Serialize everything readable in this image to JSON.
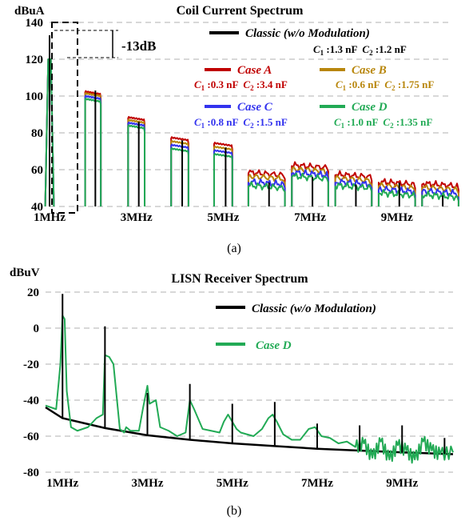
{
  "colors": {
    "classic": "#000000",
    "case_a": "#c00000",
    "case_b": "#b8860b",
    "case_c": "#3333ee",
    "case_d": "#22aa55",
    "grid": "#b0b0b0"
  },
  "chart_data": [
    {
      "type": "line",
      "title": "Coil Current Spectrum",
      "ylabel": "dBuA",
      "xlabel": "",
      "caption": "(a)",
      "x_unit": "MHz",
      "xlim": [
        1,
        10.2
      ],
      "ylim": [
        40,
        140
      ],
      "x_ticks": [
        1,
        3,
        5,
        7,
        9
      ],
      "x_tick_labels": [
        "1MHz",
        "3MHz",
        "5MHz",
        "7MHz",
        "9MHz"
      ],
      "y_ticks": [
        40,
        60,
        80,
        100,
        120,
        140
      ],
      "y_tick_labels": [
        "40",
        "60",
        "80",
        "100",
        "120",
        "140"
      ],
      "grid": "horizontal-dashed",
      "annotation": {
        "text": "-13dB",
        "from_y": 133,
        "to_y": 120,
        "at_x": 1
      },
      "legend": [
        {
          "name": "Classic (w/o Modulation)",
          "params": [
            {
              "sym": "C",
              "sub": "1",
              "val": " :1.3 nF"
            },
            {
              "sym": "C",
              "sub": "2",
              "val": " :1.2 nF"
            }
          ]
        },
        {
          "name": "Case A",
          "params": [
            {
              "sym": "C",
              "sub": "1",
              "val": " :0.3 nF"
            },
            {
              "sym": "C",
              "sub": "2",
              "val": " :3.4 nF"
            }
          ]
        },
        {
          "name": "Case B",
          "params": [
            {
              "sym": "C",
              "sub": "1",
              "val": " :0.6 nF"
            },
            {
              "sym": "C",
              "sub": "2",
              "val": " :1.75 nF"
            }
          ]
        },
        {
          "name": "Case C",
          "params": [
            {
              "sym": "C",
              "sub": "1",
              "val": " :0.8 nF"
            },
            {
              "sym": "C",
              "sub": "2",
              "val": " :1.5 nF"
            }
          ]
        },
        {
          "name": "Case D",
          "params": [
            {
              "sym": "C",
              "sub": "1",
              "val": " :1.0 nF"
            },
            {
              "sym": "C",
              "sub": "2",
              "val": " :1.35 nF"
            }
          ]
        }
      ],
      "classic_harmonics": {
        "x": [
          1,
          2,
          3,
          4,
          5,
          6,
          7,
          8,
          9,
          10
        ],
        "y": [
          133,
          103,
          86,
          76,
          72,
          53,
          56,
          52,
          53,
          46
        ]
      },
      "case_peaks": {
        "x": [
          1,
          2,
          3,
          4,
          5,
          6,
          7,
          8,
          9,
          10
        ],
        "case_a": [
          120,
          101,
          87,
          76,
          73,
          57,
          61,
          56,
          52,
          51
        ],
        "case_b": [
          120,
          100,
          85.5,
          74,
          71,
          55,
          59,
          54,
          50,
          49
        ],
        "case_c": [
          120,
          98.5,
          84,
          72,
          69,
          52,
          57,
          52,
          48,
          47
        ],
        "case_d": [
          120,
          97,
          82.5,
          70,
          67,
          50,
          55,
          50,
          46,
          45
        ]
      }
    },
    {
      "type": "line",
      "title": "LISN Receiver Spectrum",
      "ylabel": "dBuV",
      "xlabel": "",
      "caption": "(b)",
      "x_unit": "MHz",
      "xlim": [
        0.6,
        10.2
      ],
      "ylim": [
        -80,
        20
      ],
      "x_ticks": [
        1,
        3,
        5,
        7,
        9
      ],
      "x_tick_labels": [
        "1MHz",
        "3MHz",
        "5MHz",
        "7MHz",
        "9MHz"
      ],
      "y_ticks": [
        -80,
        -60,
        -40,
        -20,
        0,
        20
      ],
      "y_tick_labels": [
        "-80",
        "-60",
        "-40",
        "-20",
        "0",
        "20"
      ],
      "grid": "horizontal-dashed",
      "legend": [
        {
          "name": "Classic (w/o Modulation)"
        },
        {
          "name": "Case D"
        }
      ],
      "classic_harmonics": {
        "x": [
          1,
          2,
          3,
          4,
          5,
          6,
          7,
          8,
          9,
          10
        ],
        "y": [
          19,
          1,
          -36,
          -31,
          -42,
          -41,
          -53,
          -54,
          -54,
          -61
        ]
      },
      "classic_floor": {
        "x": [
          0.6,
          1,
          2,
          3,
          4,
          5,
          6,
          7,
          8,
          9,
          10.2
        ],
        "y": [
          -44,
          -50,
          -55.5,
          -59.5,
          -62,
          -64,
          -65.5,
          -67,
          -68,
          -69,
          -70
        ]
      },
      "case_d": {
        "x": [
          0.6,
          0.85,
          0.95,
          1.0,
          1.05,
          1.1,
          1.2,
          1.35,
          1.6,
          1.8,
          1.95,
          2.0,
          2.1,
          2.2,
          2.35,
          2.45,
          2.5,
          2.6,
          2.8,
          2.9,
          3.0,
          3.05,
          3.2,
          3.3,
          3.5,
          3.7,
          3.9,
          4.0,
          4.1,
          4.3,
          4.5,
          4.7,
          4.8,
          4.9,
          5.0,
          5.1,
          5.2,
          5.5,
          5.7,
          5.85,
          5.95,
          6.05,
          6.2,
          6.4,
          6.6,
          6.8,
          6.95,
          7.1,
          7.3,
          7.5,
          7.7,
          7.9,
          8.1,
          8.3,
          8.5,
          8.7,
          8.9,
          9.1,
          9.3,
          9.5,
          9.7,
          9.9,
          10.2
        ],
        "y": [
          -43,
          -45,
          -20,
          7,
          5,
          -35,
          -55,
          -57,
          -55,
          -50,
          -48,
          -15,
          -16,
          -20,
          -56,
          -58,
          -55,
          -57,
          -57,
          -44,
          -32,
          -42,
          -40,
          -55,
          -57,
          -60,
          -58,
          -40,
          -45,
          -56,
          -57,
          -58,
          -52,
          -48,
          -52,
          -56,
          -58,
          -60,
          -56,
          -50,
          -48,
          -52,
          -59,
          -62,
          -62,
          -56,
          -55,
          -60,
          -61,
          -64,
          -63,
          -66,
          -64,
          -72,
          -63,
          -73,
          -65,
          -68,
          -73,
          -63,
          -68,
          -70,
          -69
        ]
      }
    }
  ]
}
